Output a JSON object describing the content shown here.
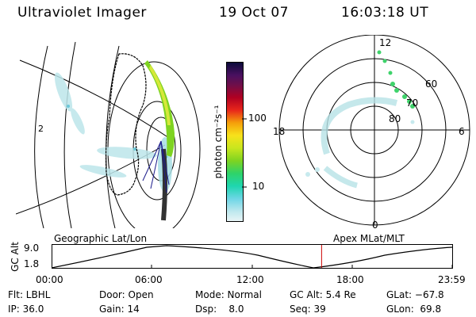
{
  "header": {
    "instrument": "Ultraviolet Imager",
    "date": "19 Oct 07",
    "time": "16:03:18 UT"
  },
  "geo_panel": {
    "label": "Geographic Lat/Lon",
    "marker": "2"
  },
  "colorbar": {
    "unit_label": "photon cm⁻²s⁻¹",
    "ticks": [
      "100",
      "10"
    ]
  },
  "polar_plot": {
    "label": "Apex MLat/MLT",
    "lat_labels": [
      "60",
      "70",
      "80"
    ],
    "mlt_labels": [
      "12",
      "18",
      "6",
      "0"
    ]
  },
  "altitude_plot": {
    "axis_title": "GC Alt",
    "y_ticks": [
      "9.0",
      "1.8"
    ],
    "time_ticks": [
      "00:00",
      "06:00",
      "12:00",
      "18:00",
      "23:59"
    ],
    "current_time_fraction": 0.673
  },
  "status": {
    "flt": "Flt: LBHL",
    "ip": "IP: 36.0",
    "door": "Door: Open",
    "gain": "Gain: 14",
    "mode": "Mode: Normal",
    "dsp": "Dsp:    8.0",
    "gc_alt": "GC Alt: 5.4 Re",
    "seq": "Seq: 39",
    "glat": "GLat: −67.8",
    "glon": "GLon:  69.8"
  },
  "colors": {
    "marker_red": "#cc0000",
    "aurora_green": "#7ed321",
    "aurora_cyan": "#9edbe0"
  }
}
